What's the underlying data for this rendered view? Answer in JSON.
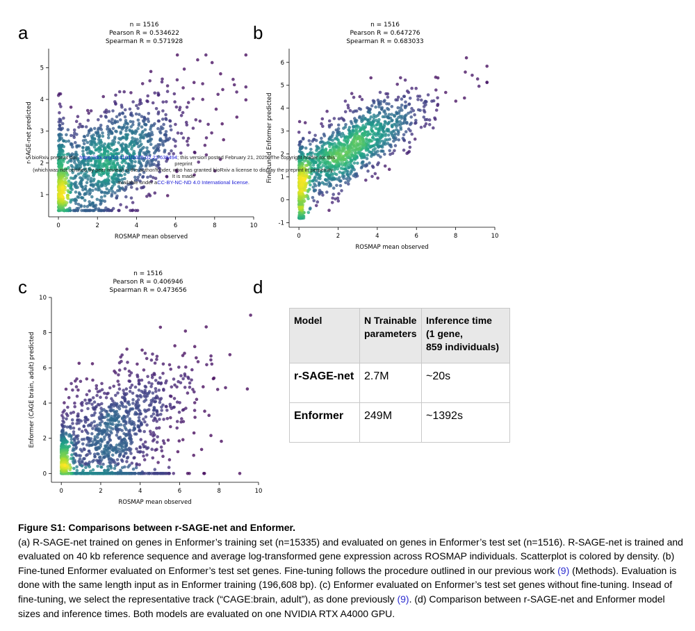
{
  "panels": [
    {
      "letter": "a",
      "stats": [
        "n = 1516",
        "Pearson R = 0.534622",
        "Spearman R = 0.571928"
      ],
      "xlabel": "ROSMAP mean observed",
      "ylabel": "r-SAGE-net predicted",
      "xlim": [
        -0.5,
        10
      ],
      "ylim": [
        0.3,
        5.6
      ],
      "xticks": [
        0,
        2,
        4,
        6,
        8,
        10
      ],
      "yticks": [
        1,
        2,
        3,
        4,
        5
      ]
    },
    {
      "letter": "b",
      "stats": [
        "n = 1516",
        "Pearson R = 0.647276",
        "Spearman R = 0.683033"
      ],
      "xlabel": "ROSMAP mean observed",
      "ylabel": "Fine-tuned Enformer predicted",
      "xlim": [
        -0.5,
        10
      ],
      "ylim": [
        -1.2,
        6.6
      ],
      "xticks": [
        0,
        2,
        4,
        6,
        8,
        10
      ],
      "yticks": [
        -1,
        0,
        1,
        2,
        3,
        4,
        5,
        6
      ]
    },
    {
      "letter": "c",
      "stats": [
        "n = 1516",
        "Pearson R = 0.406946",
        "Spearman R = 0.473656"
      ],
      "xlabel": "ROSMAP mean observed",
      "ylabel": "Enformer (CAGE brain, adult) predicted",
      "xlim": [
        -0.5,
        10
      ],
      "ylim": [
        -0.5,
        10
      ],
      "xticks": [
        0,
        2,
        4,
        6,
        8,
        10
      ],
      "yticks": [
        0,
        2,
        4,
        6,
        8,
        10
      ]
    }
  ],
  "watermark": {
    "line1_a": "bioRxiv preprint doi: ",
    "line1_link": "https://doi.org/10.1101/2025.02.21.639494",
    "line1_b": "; this version posted February 21, 2025. The copyright holder for this preprint",
    "line2": "(which was not certified by peer review) is the author/funder, who has granted bioRxiv a license to display the preprint in perpetuity. It is made",
    "line3_a": "available under a",
    "line3_link": "CC-BY-NC-ND 4.0 International license",
    "line3_b": "."
  },
  "panel_d": {
    "letter": "d",
    "headers": [
      "Model",
      "N Trainable parameters",
      "Inference time (1 gene, 859 individuals)"
    ],
    "header_lines": [
      [
        "Model"
      ],
      [
        "N Trainable",
        "parameters"
      ],
      [
        "Inference time",
        "(1 gene,",
        "859 individuals)"
      ]
    ],
    "rows": [
      {
        "model": "r-SAGE-net",
        "params": "2.7M",
        "time": "~20s"
      },
      {
        "model": "Enformer",
        "params": "249M",
        "time": "~1392s"
      }
    ]
  },
  "caption": {
    "title": "Figure S1: Comparisons between r-SAGE-net and Enformer.",
    "text_1": "(a)  R-SAGE-net trained on genes in Enformer’s training set (n=15335) and evaluated on genes in Enformer’s test set (n=1516). R-SAGE-net is trained and evaluated on 40 kb reference sequence and average log-transformed gene expression across ROSMAP individuals. Scatterplot is colored by density. (b) Fine-tuned Enformer evaluated on Enformer’s test set genes. Fine-tuning follows the procedure outlined in our previous work ",
    "ref_1": "(9)",
    "text_2": " (Methods). Evaluation is done with the same length input as in Enformer training (196,608 bp). (c) Enformer evaluated on Enformer’s test set genes without fine-tuning. Insead of fine-tuning, we select the representative track (“CAGE:brain, adult”), as done previously ",
    "ref_2": "(9)",
    "text_3": ". (d) Comparison between r-SAGE-net and Enformer model sizes and inference times. Both models are evaluated on one NVIDIA RTX A4000 GPU."
  },
  "colors": {
    "ref_link": "#2b2bd0",
    "viridis_low": "#440154",
    "viridis_mid": "#21918c",
    "viridis_high": "#fde725"
  }
}
